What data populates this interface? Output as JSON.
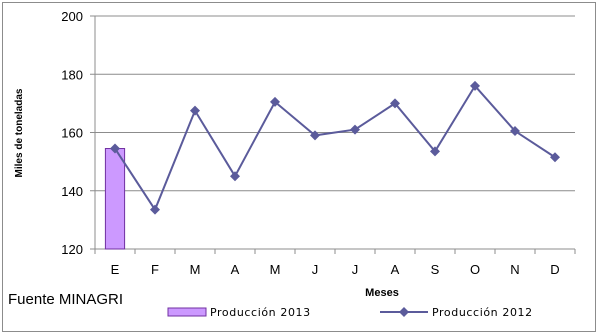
{
  "chart_data": {
    "type": "bar+line",
    "categories": [
      "E",
      "F",
      "M",
      "A",
      "M",
      "J",
      "J",
      "A",
      "S",
      "O",
      "N",
      "D"
    ],
    "series": [
      {
        "name": "Producción 2013",
        "type": "bar",
        "color": "#cc99ff",
        "stroke": "#7030a0",
        "values": [
          154.5,
          null,
          null,
          null,
          null,
          null,
          null,
          null,
          null,
          null,
          null,
          null
        ]
      },
      {
        "name": "Producción 2012",
        "type": "line",
        "marker": "diamond",
        "color": "#5b5b9b",
        "values": [
          154.5,
          133.5,
          167.5,
          145,
          170.5,
          159,
          161,
          170,
          153.5,
          176,
          160.5,
          151.5
        ]
      }
    ],
    "title": "",
    "xlabel": "Meses",
    "ylabel": "Miles de toneladas",
    "ylim": [
      120,
      200
    ],
    "yticks": [
      120,
      140,
      160,
      180,
      200
    ],
    "grid": true,
    "legend": "bottom",
    "source": "Fuente MINAGRI"
  }
}
